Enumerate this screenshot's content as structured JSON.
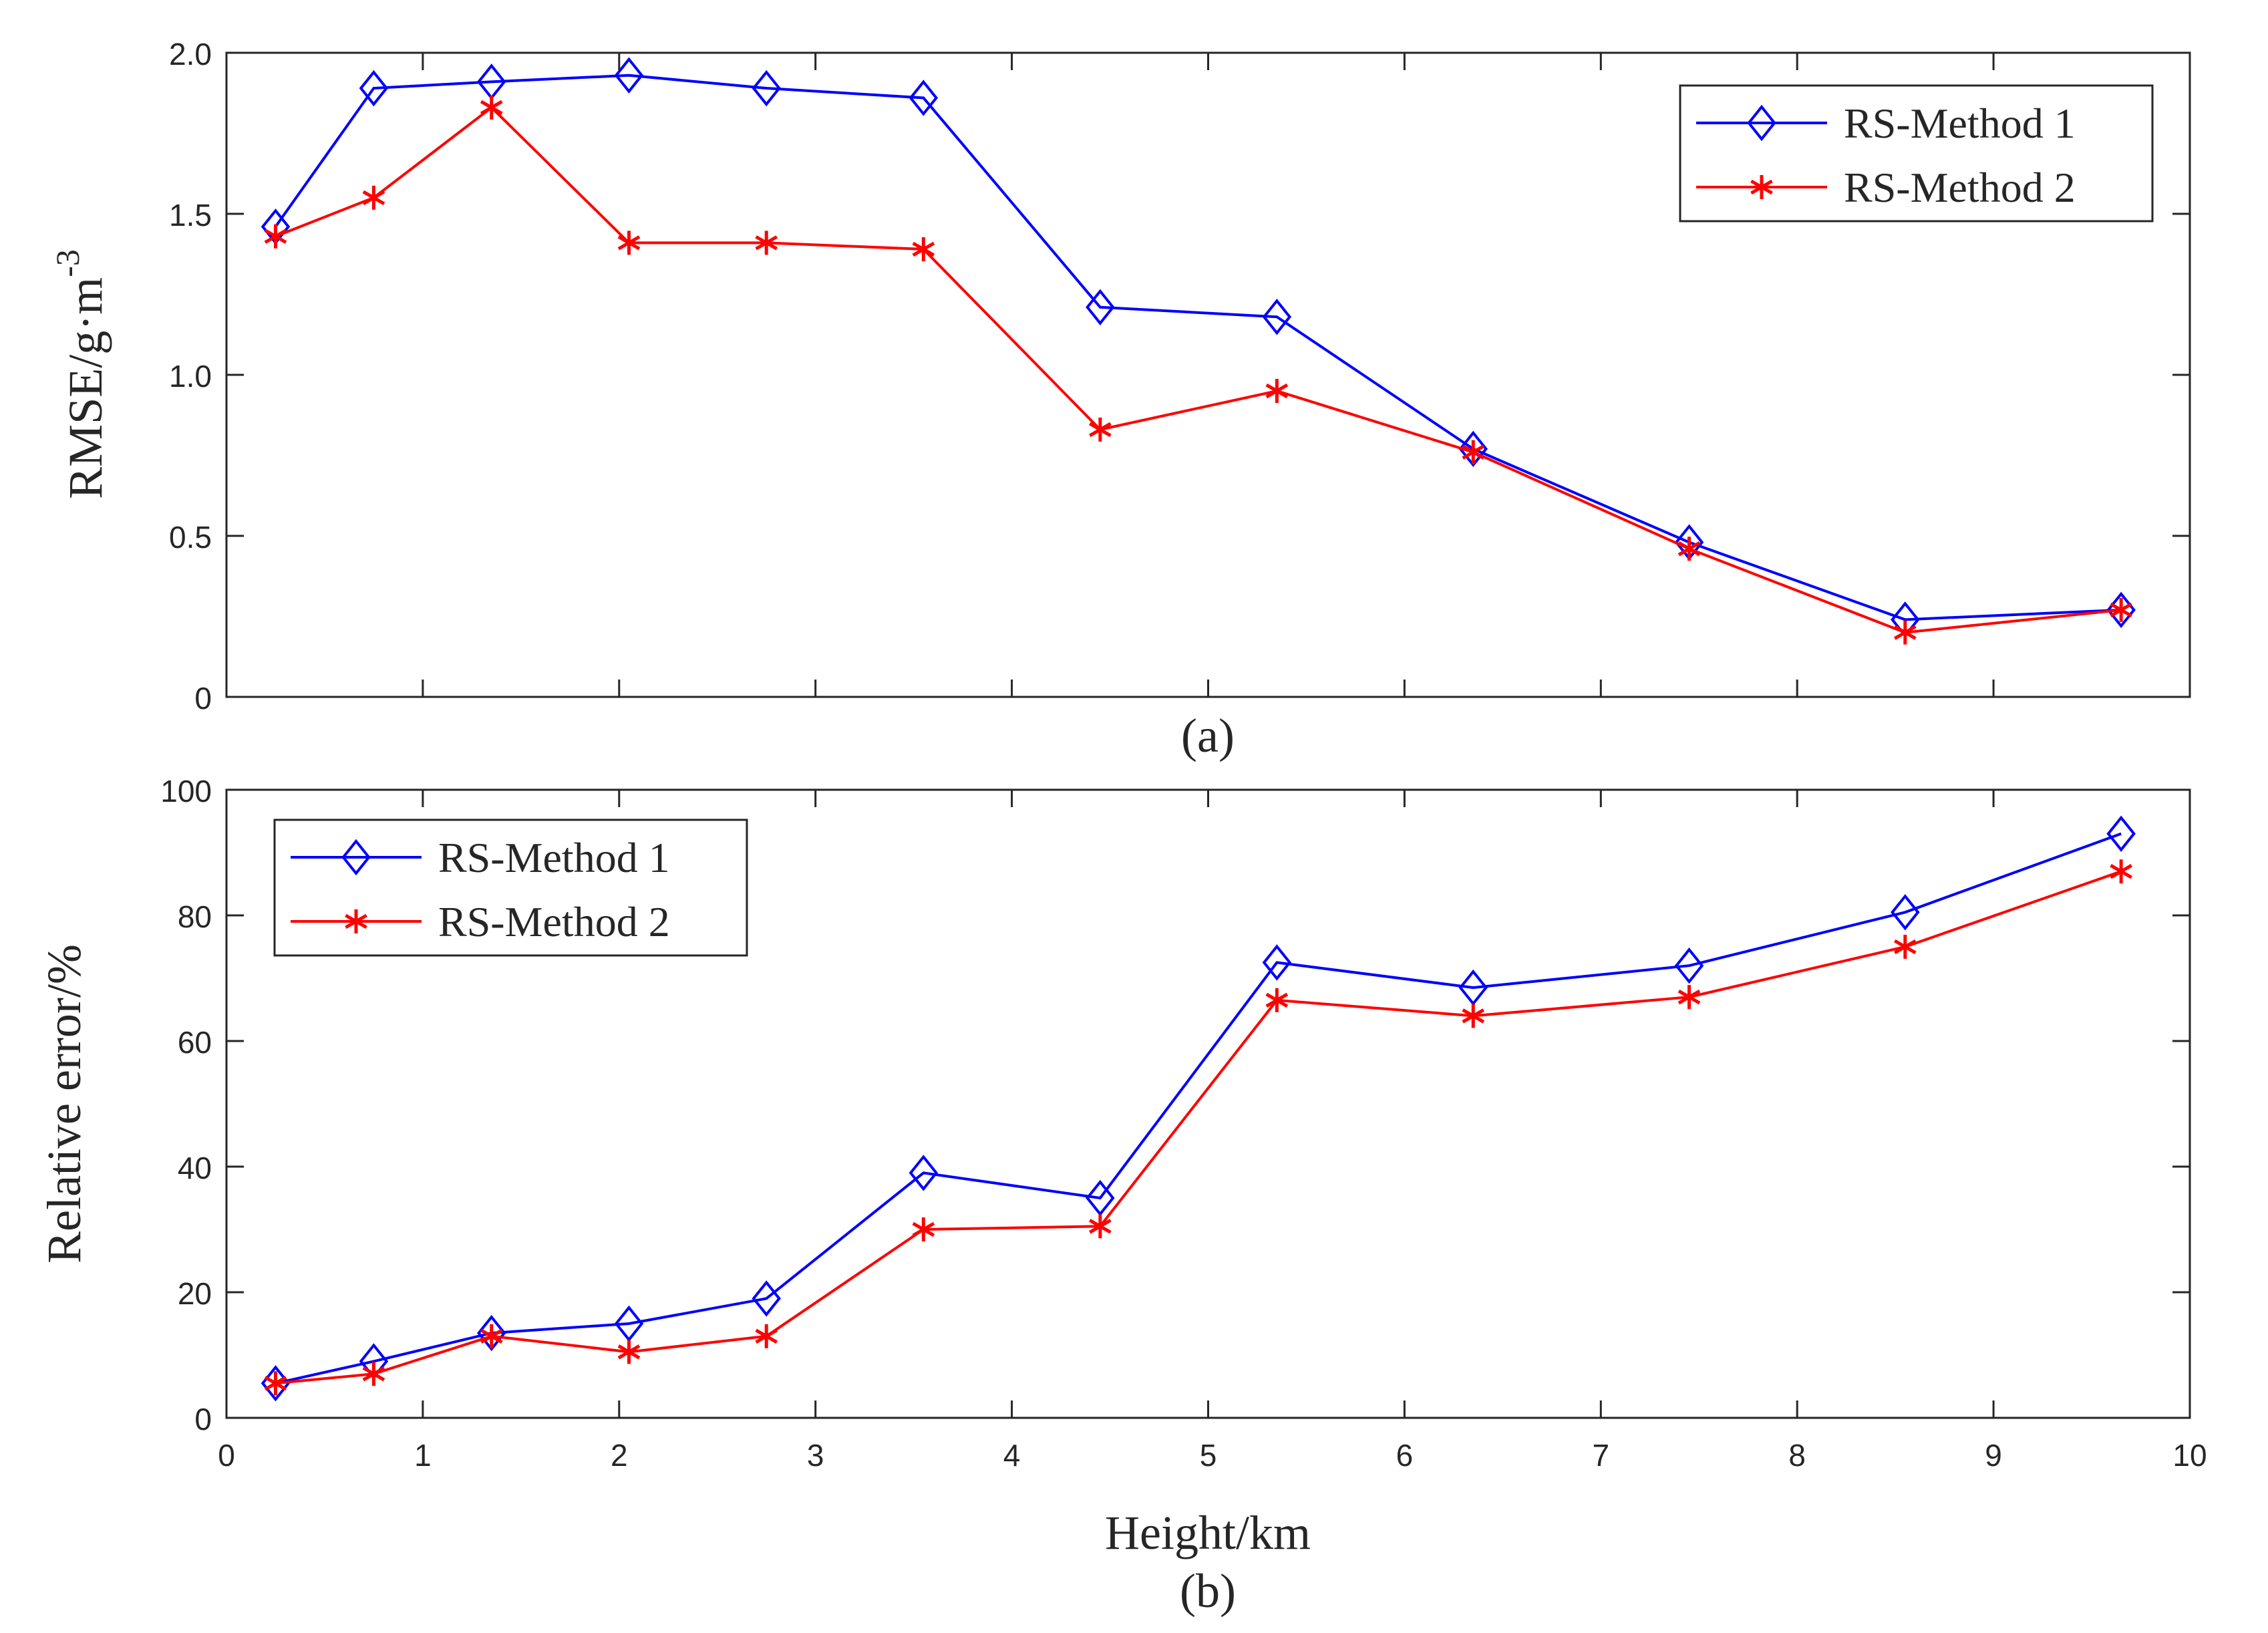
{
  "chart_data": [
    {
      "type": "line",
      "panel_label": "(a)",
      "xlabel": "",
      "ylabel_main": "RMSE/g·m",
      "ylabel_superscript": "-3",
      "xlim": [
        0,
        10
      ],
      "ylim": [
        0,
        2.0
      ],
      "xticks": [
        1,
        2,
        3,
        4,
        5,
        6,
        7,
        8,
        9
      ],
      "xtick_labels_shown": false,
      "yticks": [
        0,
        0.5,
        1.0,
        1.5,
        2.0
      ],
      "ytick_labels": [
        "0",
        "0.5",
        "1.0",
        "1.5",
        "2.0"
      ],
      "grid": false,
      "legend_position": "top-right",
      "x": [
        0.25,
        0.75,
        1.35,
        2.05,
        2.75,
        3.55,
        4.45,
        5.35,
        6.35,
        7.45,
        8.55,
        9.65
      ],
      "series": [
        {
          "name": "RS-Method 1",
          "color": "#0000ff",
          "marker": "diamond",
          "values": [
            1.46,
            1.89,
            1.91,
            1.93,
            1.89,
            1.86,
            1.21,
            1.18,
            0.77,
            0.48,
            0.24,
            0.27
          ]
        },
        {
          "name": "RS-Method 2",
          "color": "#ff0000",
          "marker": "asterisk",
          "values": [
            1.43,
            1.55,
            1.83,
            1.41,
            1.41,
            1.39,
            0.83,
            0.95,
            0.76,
            0.46,
            0.2,
            0.27
          ]
        }
      ]
    },
    {
      "type": "line",
      "panel_label": "(b)",
      "xlabel": "Height/km",
      "ylabel": "Relative error/%",
      "xlim": [
        0,
        10
      ],
      "ylim": [
        0,
        100
      ],
      "xticks": [
        0,
        1,
        2,
        3,
        4,
        5,
        6,
        7,
        8,
        9,
        10
      ],
      "xtick_labels": [
        "0",
        "1",
        "2",
        "3",
        "4",
        "5",
        "6",
        "7",
        "8",
        "9",
        "10"
      ],
      "yticks": [
        0,
        20,
        40,
        60,
        80,
        100
      ],
      "ytick_labels": [
        "0",
        "20",
        "40",
        "60",
        "80",
        "100"
      ],
      "grid": false,
      "legend_position": "top-left",
      "x": [
        0.25,
        0.75,
        1.35,
        2.05,
        2.75,
        3.55,
        4.45,
        5.35,
        6.35,
        7.45,
        8.55,
        9.65
      ],
      "series": [
        {
          "name": "RS-Method 1",
          "color": "#0000ff",
          "marker": "diamond",
          "values": [
            5.5,
            9,
            13.5,
            15,
            19,
            39,
            35,
            72.5,
            68.5,
            72,
            80.5,
            93
          ]
        },
        {
          "name": "RS-Method 2",
          "color": "#ff0000",
          "marker": "asterisk",
          "values": [
            5.5,
            7,
            13,
            10.5,
            13,
            30,
            30.5,
            66.5,
            64,
            67,
            75,
            87
          ]
        }
      ]
    }
  ]
}
